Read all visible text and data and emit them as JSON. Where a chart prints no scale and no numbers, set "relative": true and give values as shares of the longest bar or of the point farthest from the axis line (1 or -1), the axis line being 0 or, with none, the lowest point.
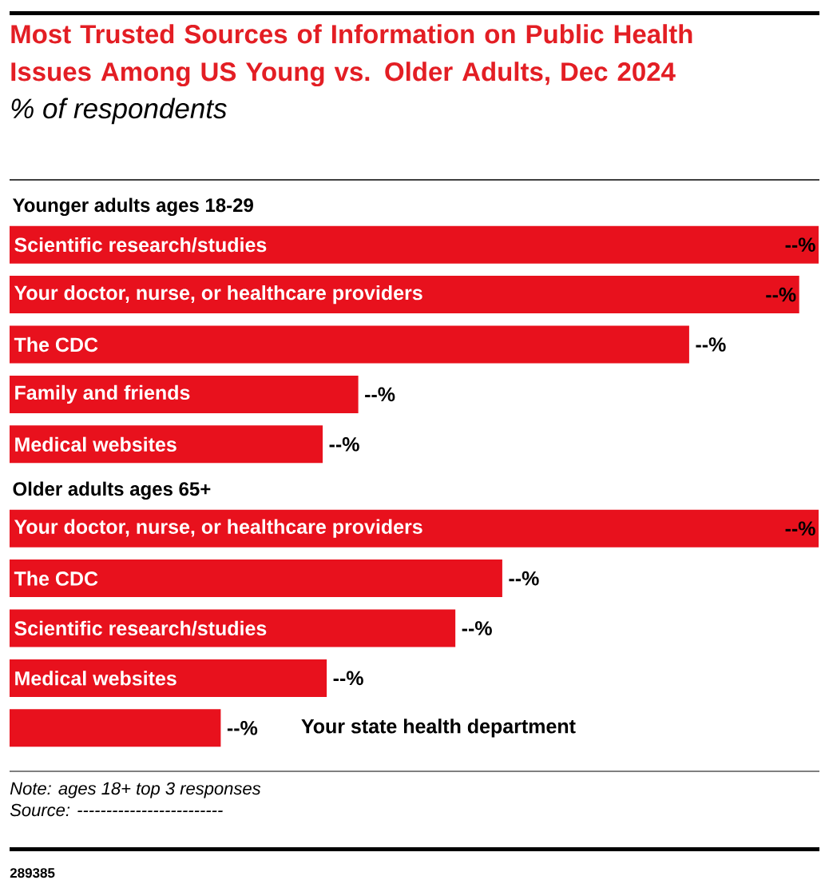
{
  "chart_data": [
    {
      "type": "bar",
      "orientation": "horizontal",
      "relative": true,
      "title": "Most Trusted Sources of Information on Public Health Issues Among US Young vs. Older Adults, Dec 2024",
      "subtitle": "% of respondents",
      "ylabel": "Younger adults ages 18-29",
      "categories": [
        "Scientific research/studies",
        "Your doctor, nurse, or healthcare providers",
        "The CDC",
        "Family and friends",
        "Medical websites"
      ],
      "values": [
        1.0,
        0.976,
        0.84,
        0.431,
        0.387
      ],
      "color": "#e8111d",
      "annotations": [
        {
          "text": "--%",
          "x": 1.0,
          "y": "Scientific research/studies"
        },
        {
          "text": "--%",
          "x": 0.976,
          "y": "Your doctor, nurse, or healthcare providers"
        },
        {
          "text": "--%",
          "x": 0.84,
          "y": "The CDC"
        },
        {
          "text": "--%",
          "x": 0.431,
          "y": "Family and friends"
        },
        {
          "text": "--%",
          "x": 0.387,
          "y": "Medical websites"
        }
      ]
    },
    {
      "type": "bar",
      "orientation": "horizontal",
      "relative": true,
      "ylabel": "Older adults ages 65+",
      "categories": [
        "Your doctor, nurse, or healthcare providers",
        "The CDC",
        "Scientific research/studies",
        "Medical websites",
        "Your state health department"
      ],
      "values": [
        1.0,
        0.609,
        0.551,
        0.392,
        0.261
      ],
      "color": "#e8111d",
      "annotations": [
        {
          "text": "--%",
          "x": 1.0,
          "y": "Your doctor, nurse, or healthcare providers"
        },
        {
          "text": "--%",
          "x": 0.609,
          "y": "The CDC"
        },
        {
          "text": "--%",
          "x": 0.551,
          "y": "Scientific research/studies"
        },
        {
          "text": "--%",
          "x": 0.392,
          "y": "Medical websites"
        },
        {
          "text": "--%",
          "x": 0.261,
          "y": "Your state health department"
        },
        "Note: ages 18+ top 3 responses",
        "Source: -------------------------",
        "289385"
      ]
    }
  ]
}
